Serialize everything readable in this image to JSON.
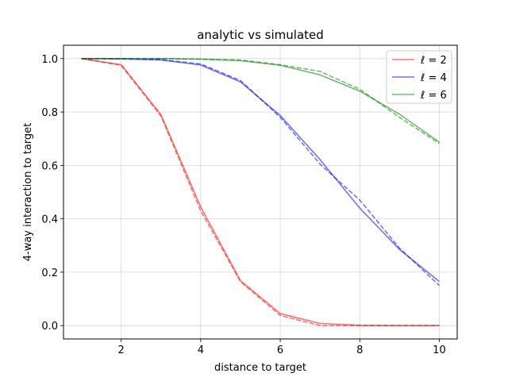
{
  "chart_data": {
    "type": "line",
    "title": "analytic vs simulated",
    "xlabel": "distance to target",
    "ylabel": "4-way interaction to target",
    "xlim": [
      0.55,
      10.45
    ],
    "ylim": [
      -0.05,
      1.05
    ],
    "xticks": [
      2,
      4,
      6,
      8,
      10
    ],
    "yticks": [
      0.0,
      0.2,
      0.4,
      0.6,
      0.8,
      1.0
    ],
    "ytick_labels": [
      "0.0",
      "0.2",
      "0.4",
      "0.6",
      "0.8",
      "1.0"
    ],
    "grid": true,
    "legend_position": "top-right",
    "x": [
      1,
      2,
      3,
      4,
      5,
      6,
      7,
      8,
      9,
      10
    ],
    "series": [
      {
        "name": "ℓ = 2",
        "color": "#ff0000",
        "analytic": [
          1.0,
          0.977,
          0.79,
          0.445,
          0.168,
          0.045,
          0.008,
          0.001,
          0.0,
          0.0
        ],
        "simulated": [
          1.0,
          0.975,
          0.785,
          0.43,
          0.165,
          0.038,
          0.0,
          0.0,
          0.0,
          0.0
        ]
      },
      {
        "name": "ℓ = 4",
        "color": "#0000ff",
        "analytic": [
          1.0,
          0.999,
          0.995,
          0.976,
          0.913,
          0.787,
          0.622,
          0.44,
          0.285,
          0.165
        ],
        "simulated": [
          1.0,
          0.999,
          0.996,
          0.98,
          0.918,
          0.78,
          0.605,
          0.47,
          0.29,
          0.15
        ]
      },
      {
        "name": "ℓ = 6",
        "color": "#008000",
        "analytic": [
          1.0,
          1.0,
          1.0,
          0.998,
          0.992,
          0.975,
          0.939,
          0.878,
          0.792,
          0.687
        ],
        "simulated": [
          1.0,
          1.0,
          1.0,
          0.998,
          0.995,
          0.977,
          0.952,
          0.885,
          0.78,
          0.682
        ]
      }
    ]
  }
}
